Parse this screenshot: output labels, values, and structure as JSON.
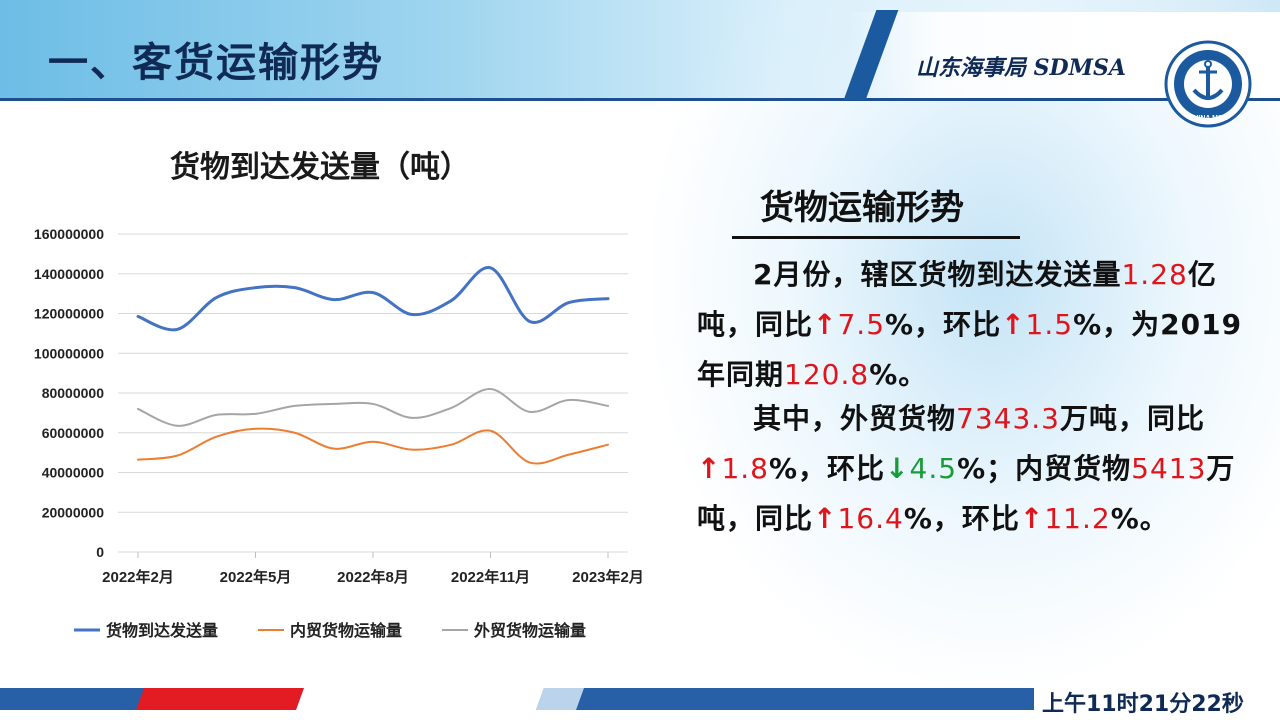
{
  "page": {
    "title": "一、客货运输形势",
    "brand_text": "山东海事局 SDMSA",
    "emblem_text": "CHINA MSA",
    "timestamp": "上午11时21分22秒"
  },
  "colors": {
    "series1": "#4472c4",
    "series2": "#ed7d31",
    "series3": "#a5a5a5",
    "highlight_red": "#e0151b",
    "highlight_green": "#1a9b3a"
  },
  "chart_data": {
    "type": "line",
    "title": "货物到达发送量（吨）",
    "xlabel": "",
    "ylabel": "",
    "ylim": [
      0,
      160000000
    ],
    "yticks": [
      0,
      20000000,
      40000000,
      60000000,
      80000000,
      100000000,
      120000000,
      140000000,
      160000000
    ],
    "ytick_labels": [
      "0",
      "20000000",
      "40000000",
      "60000000",
      "80000000",
      "100000000",
      "120000000",
      "140000000",
      "160000000"
    ],
    "x": [
      "2022年2月",
      "2022年3月",
      "2022年4月",
      "2022年5月",
      "2022年6月",
      "2022年7月",
      "2022年8月",
      "2022年9月",
      "2022年10月",
      "2022年11月",
      "2022年12月",
      "2023年1月",
      "2023年2月"
    ],
    "xtick_labels": [
      "2022年2月",
      "2022年5月",
      "2022年8月",
      "2022年11月",
      "2023年2月"
    ],
    "grid": true,
    "legend_position": "bottom",
    "series": [
      {
        "name": "货物到达发送量",
        "values": [
          118500000,
          112000000,
          128000000,
          133000000,
          133000000,
          127000000,
          130500000,
          119500000,
          126500000,
          143000000,
          116000000,
          125500000,
          127500000
        ]
      },
      {
        "name": "内贸货物运输量",
        "values": [
          46500000,
          48500000,
          58000000,
          62000000,
          60000000,
          52000000,
          55500000,
          51500000,
          54000000,
          61000000,
          45000000,
          49000000,
          54000000
        ]
      },
      {
        "name": "外贸货物运输量",
        "values": [
          72000000,
          63500000,
          69000000,
          69500000,
          73500000,
          74500000,
          74500000,
          67500000,
          72500000,
          82000000,
          70500000,
          76500000,
          73500000
        ]
      }
    ]
  },
  "section": {
    "heading": "货物运输形势",
    "p1": {
      "t1": "2月份，辖区货物到达发送量",
      "v1": "1.28",
      "t2": "亿吨，同比",
      "a1": "↑",
      "v2": "7.5",
      "t3": "%，环比",
      "a2": "↑",
      "v3": "1.5",
      "t4": "%，为2019年同期",
      "v4": "120.8",
      "t5": "%。"
    },
    "p2": {
      "t1": "其中，外贸货物",
      "v1": "7343.3",
      "t2": "万吨，同比",
      "a1": "↑",
      "v2": "1.8",
      "t3": "%，环比",
      "a2": "↓",
      "v3": "4.5",
      "t4": "%；内贸货物",
      "v4": "5413",
      "t5": "万吨，同比",
      "a3": "↑",
      "v5": "16.4",
      "t6": "%，环比",
      "a4": "↑",
      "v6": "11.2",
      "t7": "%。"
    }
  }
}
